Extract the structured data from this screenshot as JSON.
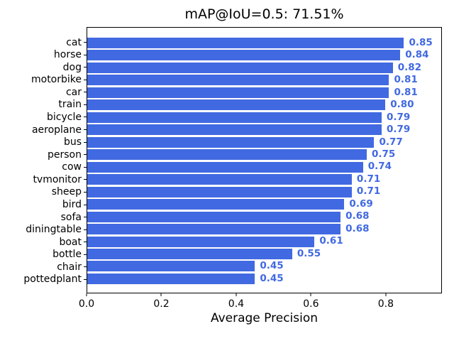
{
  "chart_data": {
    "type": "bar",
    "orientation": "horizontal",
    "title": "mAP@IoU=0.5: 71.51%",
    "xlabel": "Average Precision",
    "ylabel": "",
    "categories": [
      "cat",
      "horse",
      "dog",
      "motorbike",
      "car",
      "train",
      "bicycle",
      "aeroplane",
      "bus",
      "person",
      "cow",
      "tvmonitor",
      "sheep",
      "bird",
      "sofa",
      "diningtable",
      "boat",
      "bottle",
      "chair",
      "pottedplant"
    ],
    "values": [
      0.85,
      0.84,
      0.82,
      0.81,
      0.81,
      0.8,
      0.79,
      0.79,
      0.77,
      0.75,
      0.74,
      0.71,
      0.71,
      0.69,
      0.68,
      0.68,
      0.61,
      0.55,
      0.45,
      0.45
    ],
    "value_labels": [
      "0.85",
      "0.84",
      "0.82",
      "0.81",
      "0.81",
      "0.80",
      "0.79",
      "0.79",
      "0.77",
      "0.75",
      "0.74",
      "0.71",
      "0.71",
      "0.69",
      "0.68",
      "0.68",
      "0.61",
      "0.55",
      "0.45",
      "0.45"
    ],
    "xtick_labels": [
      "0.0",
      "0.2",
      "0.4",
      "0.6",
      "0.8"
    ],
    "xtick_values": [
      0.0,
      0.2,
      0.4,
      0.6,
      0.8
    ],
    "xlim": [
      0,
      0.95
    ],
    "grid": false,
    "legend": null,
    "bar_color": "#4169e1",
    "value_label_color": "#4169e1",
    "axis_color": "#000000",
    "background_color": "#ffffff"
  }
}
